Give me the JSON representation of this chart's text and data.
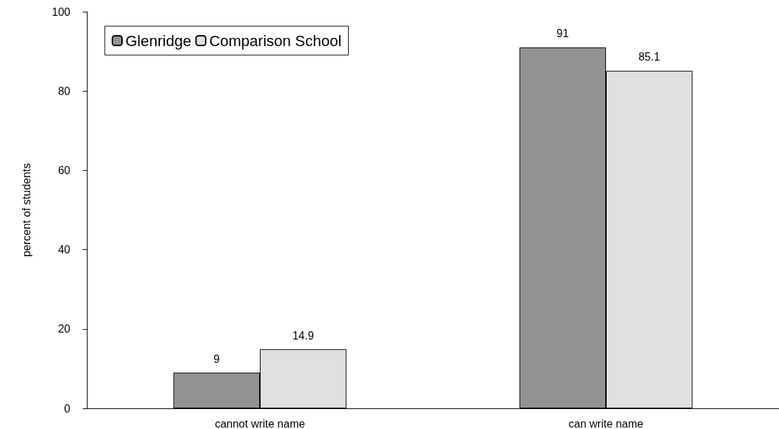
{
  "chart_data": {
    "type": "bar",
    "ylabel": "percent of students",
    "categories": [
      "cannot write name",
      "can write name"
    ],
    "series": [
      {
        "name": "Glenridge",
        "color": "#929292",
        "values": [
          9,
          91
        ]
      },
      {
        "name": "Comparison School",
        "color": "#e0e0e0",
        "values": [
          14.9,
          85.1
        ]
      }
    ],
    "ylim": [
      0,
      100
    ],
    "yticks": [
      0,
      20,
      40,
      60,
      80,
      100
    ],
    "grid": false,
    "legend": "top left",
    "data_labels": true
  }
}
